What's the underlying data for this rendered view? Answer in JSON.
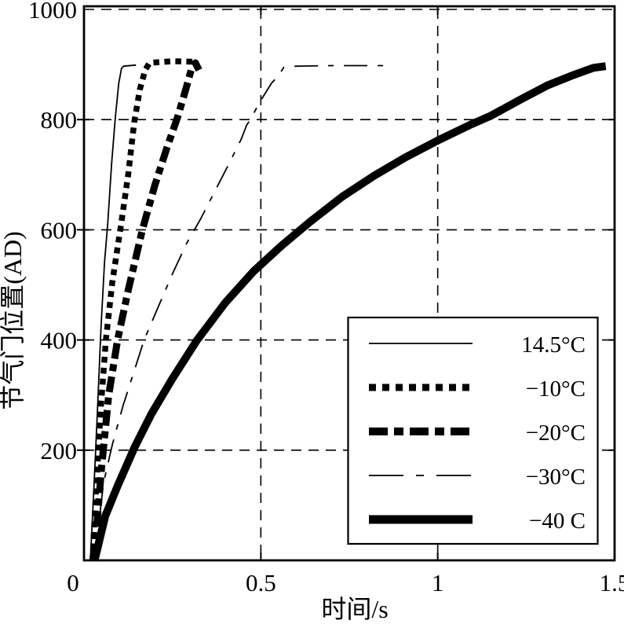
{
  "figure": {
    "background": "#ffffff",
    "line_color": "#000000"
  },
  "chart_data": {
    "type": "line",
    "title": "",
    "xlabel": "时间/s",
    "ylabel": "节气门位置(AD)",
    "xlim": [
      0,
      1.5
    ],
    "ylim": [
      0,
      1000
    ],
    "xticks": [
      0,
      0.5,
      1,
      1.5
    ],
    "xtick_labels": [
      "0",
      "0.5",
      "1",
      "1.5"
    ],
    "yticks": [
      200,
      400,
      600,
      800,
      1000
    ],
    "ytick_labels": [
      "200",
      "400",
      "600",
      "800",
      "1000"
    ],
    "grid": {
      "visible": true,
      "style": "dashed",
      "x_at": [
        0.5,
        1
      ],
      "y_at": [
        200,
        400,
        600,
        800,
        1000
      ]
    },
    "legend": {
      "position": "lower-right",
      "entries": [
        {
          "label": "14.5°C",
          "line_style": "solid-thin",
          "stroke_width": 1.8,
          "dash": ""
        },
        {
          "label": "−10°C",
          "line_style": "dotted-thick",
          "stroke_width": 9,
          "dash": "9 8"
        },
        {
          "label": "−20°C",
          "line_style": "dash-dot-thick",
          "stroke_width": 10,
          "dash": "24 8 12 8"
        },
        {
          "label": "−30°C",
          "line_style": "long-dash-thin",
          "stroke_width": 1.8,
          "dash": "44 16 10 16"
        },
        {
          "label": "−40 C",
          "line_style": "solid-thick",
          "stroke_width": 11,
          "dash": ""
        }
      ]
    },
    "series": [
      {
        "name": "14.5°C",
        "temperature_c": 14.5,
        "stroke_width": 1.8,
        "dash": "",
        "points": [
          [
            0.018,
            0
          ],
          [
            0.028,
            130
          ],
          [
            0.038,
            270
          ],
          [
            0.048,
            420
          ],
          [
            0.058,
            540
          ],
          [
            0.067,
            610
          ],
          [
            0.078,
            720
          ],
          [
            0.088,
            800
          ],
          [
            0.098,
            865
          ],
          [
            0.106,
            893
          ],
          [
            0.112,
            897
          ],
          [
            0.147,
            899
          ]
        ]
      },
      {
        "name": "−10°C",
        "temperature_c": -10,
        "stroke_width": 7.5,
        "dash": "7.5 6.5",
        "points": [
          [
            0.024,
            0
          ],
          [
            0.035,
            140
          ],
          [
            0.048,
            280
          ],
          [
            0.062,
            400
          ],
          [
            0.08,
            505
          ],
          [
            0.105,
            610
          ],
          [
            0.125,
            700
          ],
          [
            0.142,
            795
          ],
          [
            0.158,
            855
          ],
          [
            0.173,
            890
          ],
          [
            0.185,
            903
          ],
          [
            0.25,
            906
          ],
          [
            0.315,
            905
          ]
        ]
      },
      {
        "name": "−20°C",
        "temperature_c": -20,
        "stroke_width": 9,
        "dash": "20 7 9 7",
        "points": [
          [
            0.028,
            0
          ],
          [
            0.05,
            170
          ],
          [
            0.07,
            300
          ],
          [
            0.095,
            400
          ],
          [
            0.125,
            490
          ],
          [
            0.165,
            600
          ],
          [
            0.2,
            680
          ],
          [
            0.235,
            750
          ],
          [
            0.265,
            805
          ],
          [
            0.29,
            860
          ],
          [
            0.305,
            895
          ],
          [
            0.315,
            903
          ],
          [
            0.325,
            890
          ]
        ]
      },
      {
        "name": "−30°C",
        "temperature_c": -30,
        "stroke_width": 1.8,
        "dash": "30 13 7 13",
        "points": [
          [
            0.03,
            0
          ],
          [
            0.055,
            140
          ],
          [
            0.08,
            210
          ],
          [
            0.11,
            280
          ],
          [
            0.14,
            340
          ],
          [
            0.17,
            400
          ],
          [
            0.21,
            460
          ],
          [
            0.25,
            520
          ],
          [
            0.29,
            575
          ],
          [
            0.33,
            620
          ],
          [
            0.37,
            670
          ],
          [
            0.41,
            720
          ],
          [
            0.445,
            765
          ],
          [
            0.46,
            790
          ],
          [
            0.47,
            800
          ],
          [
            0.5,
            835
          ],
          [
            0.53,
            866
          ],
          [
            0.55,
            880
          ],
          [
            0.565,
            895
          ],
          [
            0.6,
            897
          ],
          [
            0.7,
            898
          ],
          [
            0.85,
            898
          ]
        ]
      },
      {
        "name": "−40 C",
        "temperature_c": -40,
        "stroke_width": 10,
        "dash": "",
        "points": [
          [
            0.03,
            0
          ],
          [
            0.06,
            80
          ],
          [
            0.095,
            135
          ],
          [
            0.143,
            205
          ],
          [
            0.19,
            265
          ],
          [
            0.25,
            330
          ],
          [
            0.32,
            400
          ],
          [
            0.4,
            468
          ],
          [
            0.48,
            525
          ],
          [
            0.56,
            572
          ],
          [
            0.64,
            615
          ],
          [
            0.73,
            660
          ],
          [
            0.82,
            698
          ],
          [
            0.91,
            732
          ],
          [
            1.0,
            762
          ],
          [
            1.09,
            790
          ],
          [
            1.15,
            807
          ],
          [
            1.23,
            835
          ],
          [
            1.31,
            862
          ],
          [
            1.38,
            880
          ],
          [
            1.44,
            894
          ],
          [
            1.475,
            897
          ]
        ]
      }
    ]
  }
}
